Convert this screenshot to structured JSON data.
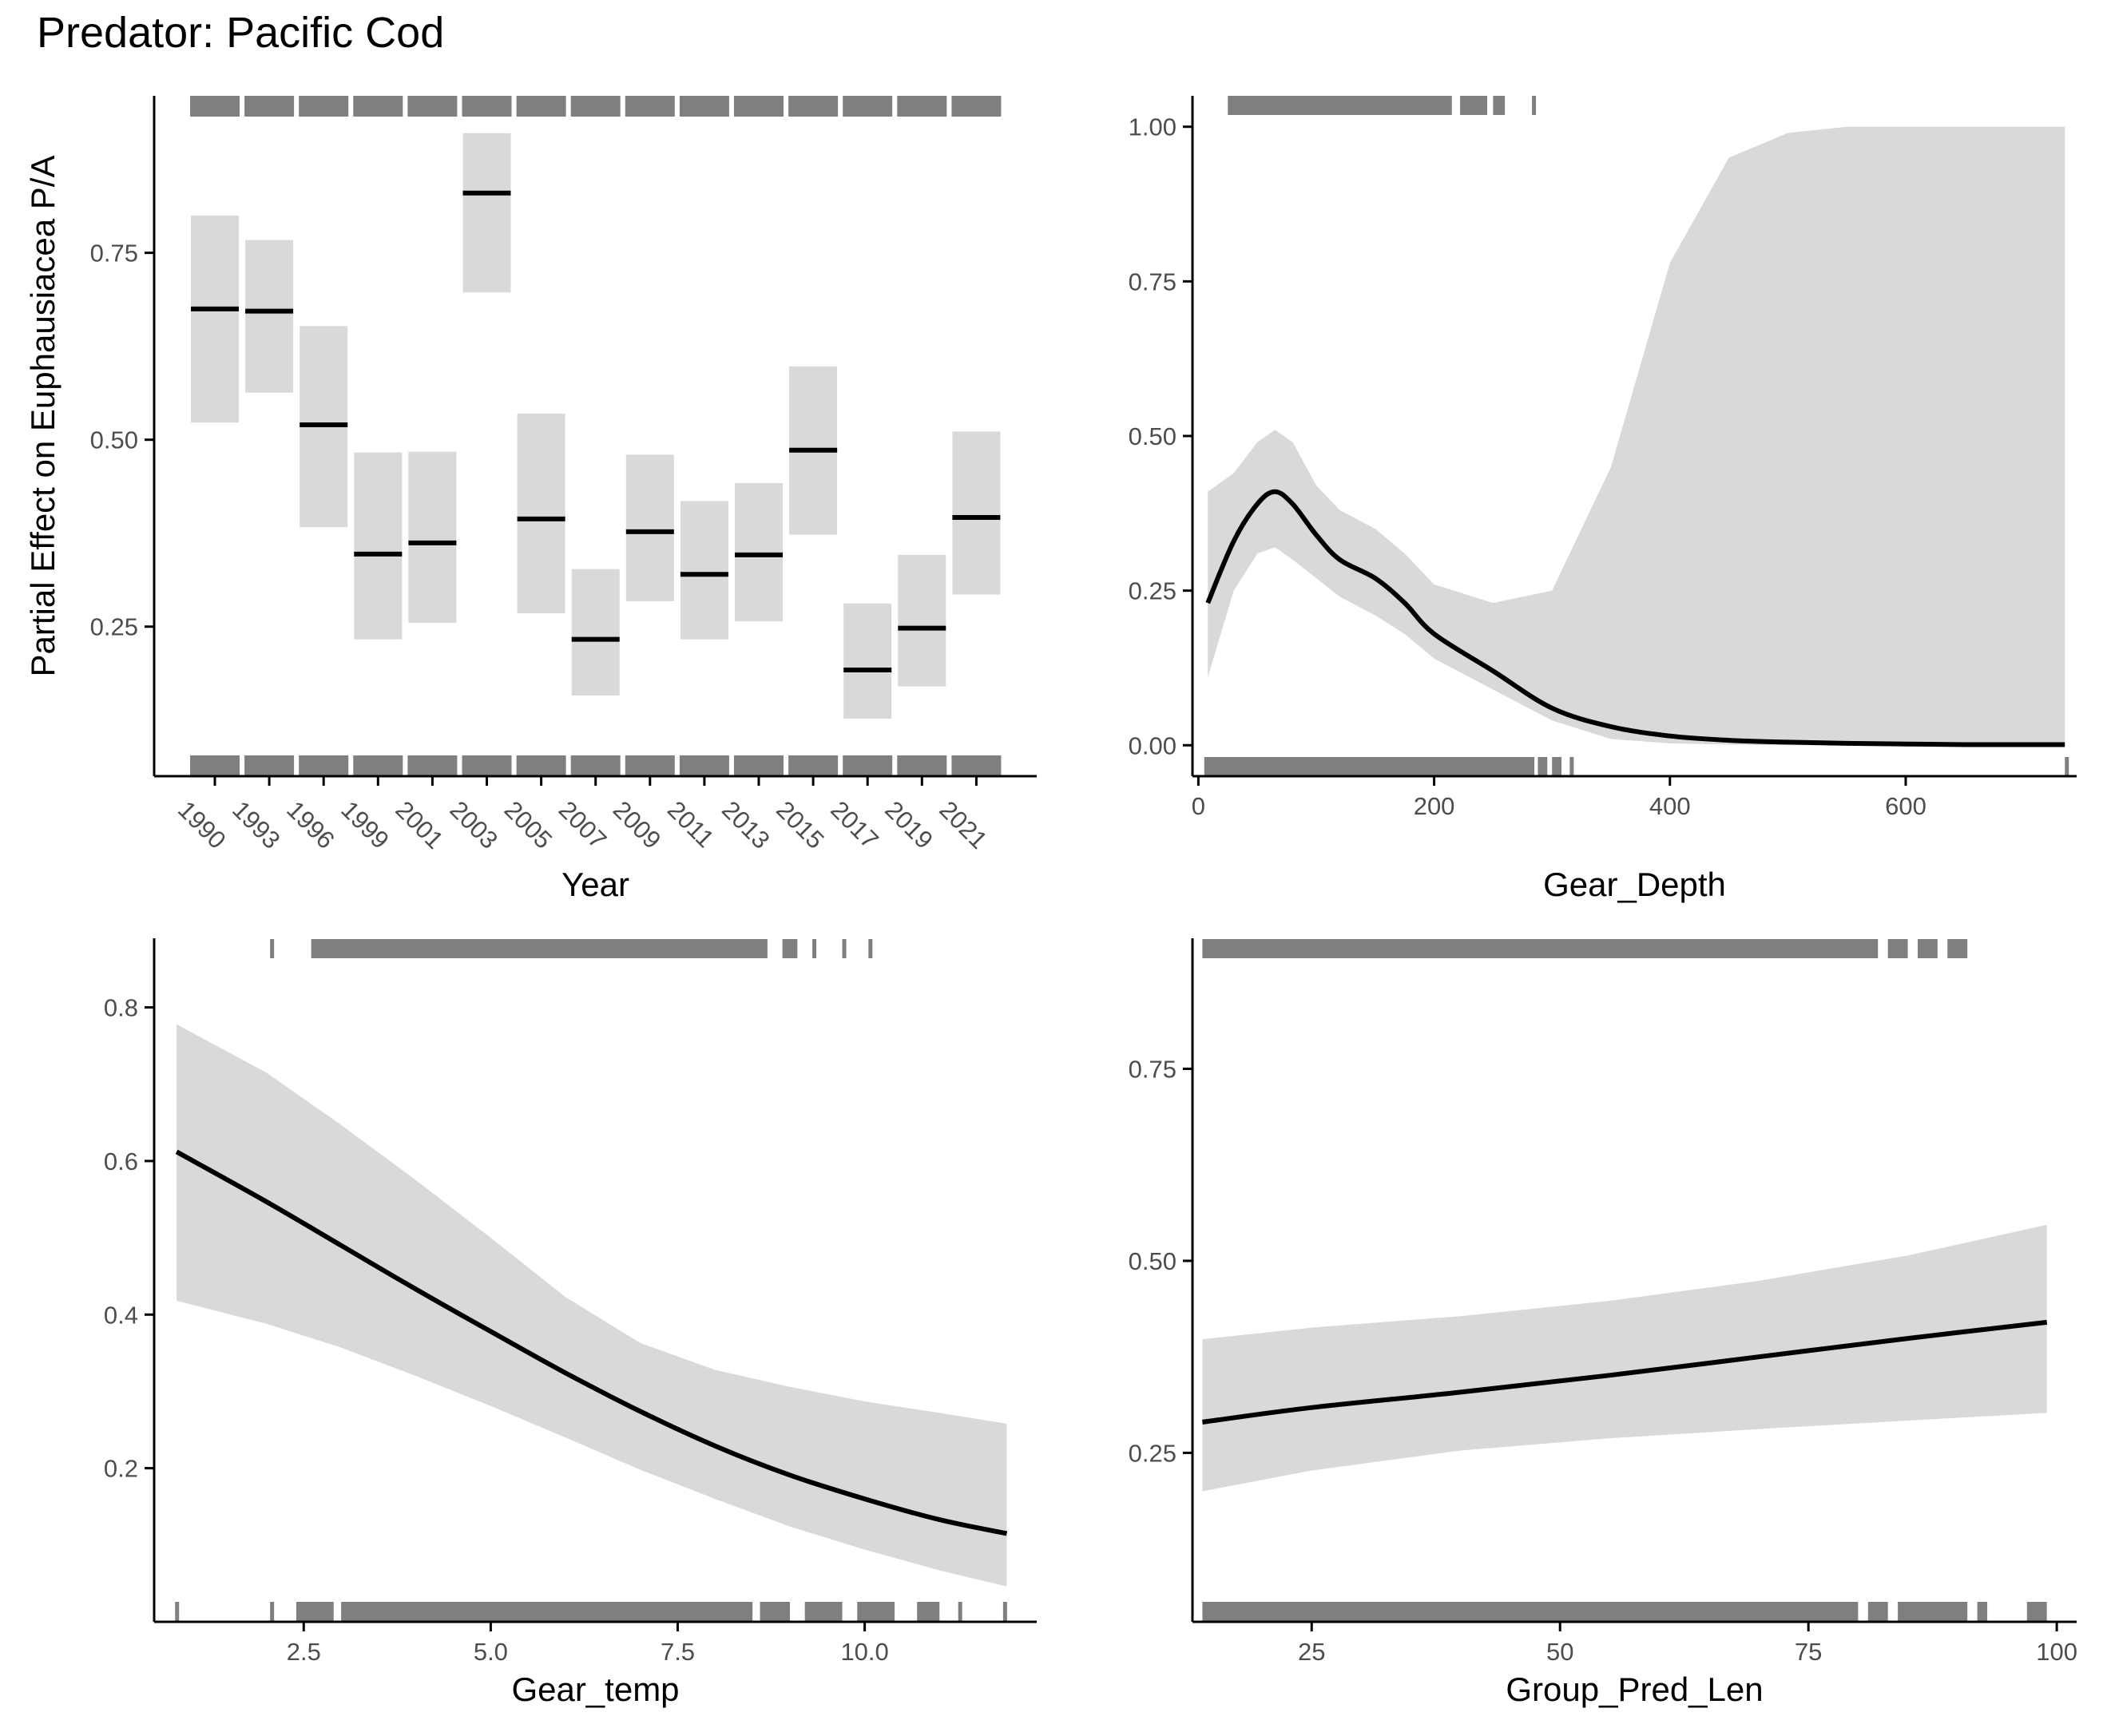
{
  "title": "Predator: Pacific Cod",
  "colors": {
    "ci_band": "#d9d9d9",
    "fit_line": "#000000",
    "rug": "#7f7f7f",
    "axis": "#000000",
    "tick_text": "#4d4d4d"
  },
  "chart_data": [
    {
      "type": "crossbar",
      "title": "",
      "xlabel": "Year",
      "ylabel": "Partial Effect on Euphausiacea P/A",
      "ylim": [
        0.05,
        0.96
      ],
      "yticks": [
        0.25,
        0.5,
        0.75
      ],
      "ytick_labels": [
        "0.25",
        "0.50",
        "0.75"
      ],
      "categories": [
        "1990",
        "1993",
        "1996",
        "1999",
        "2001",
        "2003",
        "2005",
        "2007",
        "2009",
        "2011",
        "2013",
        "2015",
        "2017",
        "2019",
        "2021"
      ],
      "values": [
        0.675,
        0.672,
        0.52,
        0.347,
        0.362,
        0.83,
        0.394,
        0.233,
        0.377,
        0.32,
        0.346,
        0.486,
        0.192,
        0.248,
        0.396
      ],
      "lower": [
        0.523,
        0.563,
        0.383,
        0.233,
        0.255,
        0.697,
        0.268,
        0.158,
        0.284,
        0.233,
        0.257,
        0.373,
        0.127,
        0.17,
        0.293
      ],
      "upper": [
        0.8,
        0.767,
        0.652,
        0.483,
        0.484,
        0.91,
        0.535,
        0.327,
        0.48,
        0.418,
        0.442,
        0.598,
        0.281,
        0.346,
        0.511
      ],
      "rug_note": "presence/absence rug marks for each year"
    },
    {
      "type": "line",
      "title": "",
      "xlabel": "Gear_Depth",
      "ylabel": "",
      "xlim": [
        -5,
        745
      ],
      "ylim": [
        -0.05,
        1.05
      ],
      "xticks": [
        0,
        200,
        400,
        600
      ],
      "xtick_labels": [
        "0",
        "200",
        "400",
        "600"
      ],
      "yticks": [
        0,
        0.25,
        0.5,
        0.75,
        1.0
      ],
      "ytick_labels": [
        "0.00",
        "0.25",
        "0.50",
        "0.75",
        "1.00"
      ],
      "x": [
        8,
        30,
        50,
        65,
        80,
        100,
        120,
        150,
        175,
        200,
        250,
        300,
        350,
        400,
        450,
        500,
        550,
        600,
        650,
        700,
        735
      ],
      "fit": [
        0.23,
        0.33,
        0.39,
        0.41,
        0.39,
        0.34,
        0.3,
        0.27,
        0.23,
        0.18,
        0.12,
        0.06,
        0.03,
        0.015,
        0.008,
        0.005,
        0.003,
        0.002,
        0.001,
        0.001,
        0.001
      ],
      "lower": [
        0.11,
        0.25,
        0.31,
        0.32,
        0.3,
        0.27,
        0.24,
        0.21,
        0.18,
        0.14,
        0.09,
        0.04,
        0.01,
        0.003,
        0.001,
        0.0,
        0.0,
        0.0,
        0.0,
        0.0,
        0.0
      ],
      "upper": [
        0.41,
        0.44,
        0.49,
        0.51,
        0.49,
        0.42,
        0.38,
        0.35,
        0.31,
        0.26,
        0.23,
        0.25,
        0.45,
        0.78,
        0.95,
        0.99,
        1.0,
        1.0,
        1.0,
        1.0,
        1.0
      ],
      "rug_top": [
        [
          25,
          215
        ],
        [
          222,
          245
        ],
        [
          250,
          260
        ],
        [
          283,
          285
        ]
      ],
      "rug_bottom": [
        [
          5,
          285
        ],
        [
          288,
          296
        ],
        [
          300,
          308
        ],
        [
          315,
          318
        ],
        [
          735,
          738
        ]
      ]
    },
    {
      "type": "line",
      "title": "",
      "xlabel": "Gear_temp",
      "ylabel": "",
      "xlim": [
        0.5,
        12.3
      ],
      "ylim": [
        0.0,
        0.89
      ],
      "xticks": [
        2.5,
        5.0,
        7.5,
        10.0
      ],
      "xtick_labels": [
        "2.5",
        "5.0",
        "7.5",
        "10.0"
      ],
      "yticks": [
        0.2,
        0.4,
        0.6,
        0.8
      ],
      "ytick_labels": [
        "0.2",
        "0.4",
        "0.6",
        "0.8"
      ],
      "x": [
        0.8,
        2.0,
        3.0,
        4.0,
        5.0,
        6.0,
        7.0,
        8.0,
        9.0,
        10.0,
        11.0,
        11.9
      ],
      "fit": [
        0.612,
        0.547,
        0.49,
        0.433,
        0.378,
        0.324,
        0.274,
        0.229,
        0.191,
        0.16,
        0.133,
        0.115
      ],
      "lower": [
        0.418,
        0.388,
        0.357,
        0.32,
        0.281,
        0.24,
        0.198,
        0.16,
        0.124,
        0.094,
        0.067,
        0.046
      ],
      "upper": [
        0.778,
        0.715,
        0.647,
        0.575,
        0.5,
        0.423,
        0.363,
        0.328,
        0.306,
        0.287,
        0.272,
        0.258
      ],
      "rug_top": [
        [
          2.05,
          2.1
        ],
        [
          2.6,
          8.7
        ],
        [
          8.9,
          9.1
        ],
        [
          9.3,
          9.35
        ],
        [
          9.7,
          9.75
        ],
        [
          10.05,
          10.1
        ]
      ],
      "rug_bottom": [
        [
          0.78,
          0.83
        ],
        [
          2.05,
          2.1
        ],
        [
          2.4,
          2.9
        ],
        [
          3.0,
          8.5
        ],
        [
          8.6,
          9.0
        ],
        [
          9.2,
          9.7
        ],
        [
          9.9,
          10.4
        ],
        [
          10.7,
          11.0
        ],
        [
          11.25,
          11.3
        ],
        [
          11.85,
          11.9
        ]
      ]
    },
    {
      "type": "line",
      "title": "",
      "xlabel": "Group_Pred_Len",
      "ylabel": "",
      "xlim": [
        13,
        102
      ],
      "ylim": [
        0.03,
        0.92
      ],
      "xticks": [
        25,
        50,
        75,
        100
      ],
      "xtick_labels": [
        "25",
        "50",
        "75",
        "100"
      ],
      "yticks": [
        0.25,
        0.5,
        0.75
      ],
      "ytick_labels": [
        "0.25",
        "0.50",
        "0.75"
      ],
      "x": [
        14,
        25,
        40,
        55,
        70,
        85,
        99
      ],
      "fit": [
        0.29,
        0.309,
        0.329,
        0.351,
        0.375,
        0.399,
        0.42
      ],
      "lower": [
        0.2,
        0.227,
        0.253,
        0.269,
        0.281,
        0.292,
        0.302
      ],
      "upper": [
        0.398,
        0.413,
        0.428,
        0.448,
        0.474,
        0.507,
        0.547
      ],
      "rug_top": [
        [
          14,
          82
        ],
        [
          83,
          85
        ],
        [
          86,
          88
        ],
        [
          89,
          91
        ]
      ],
      "rug_bottom": [
        [
          14,
          80
        ],
        [
          81,
          83
        ],
        [
          84,
          91
        ],
        [
          92,
          93
        ],
        [
          97,
          99
        ]
      ]
    }
  ]
}
